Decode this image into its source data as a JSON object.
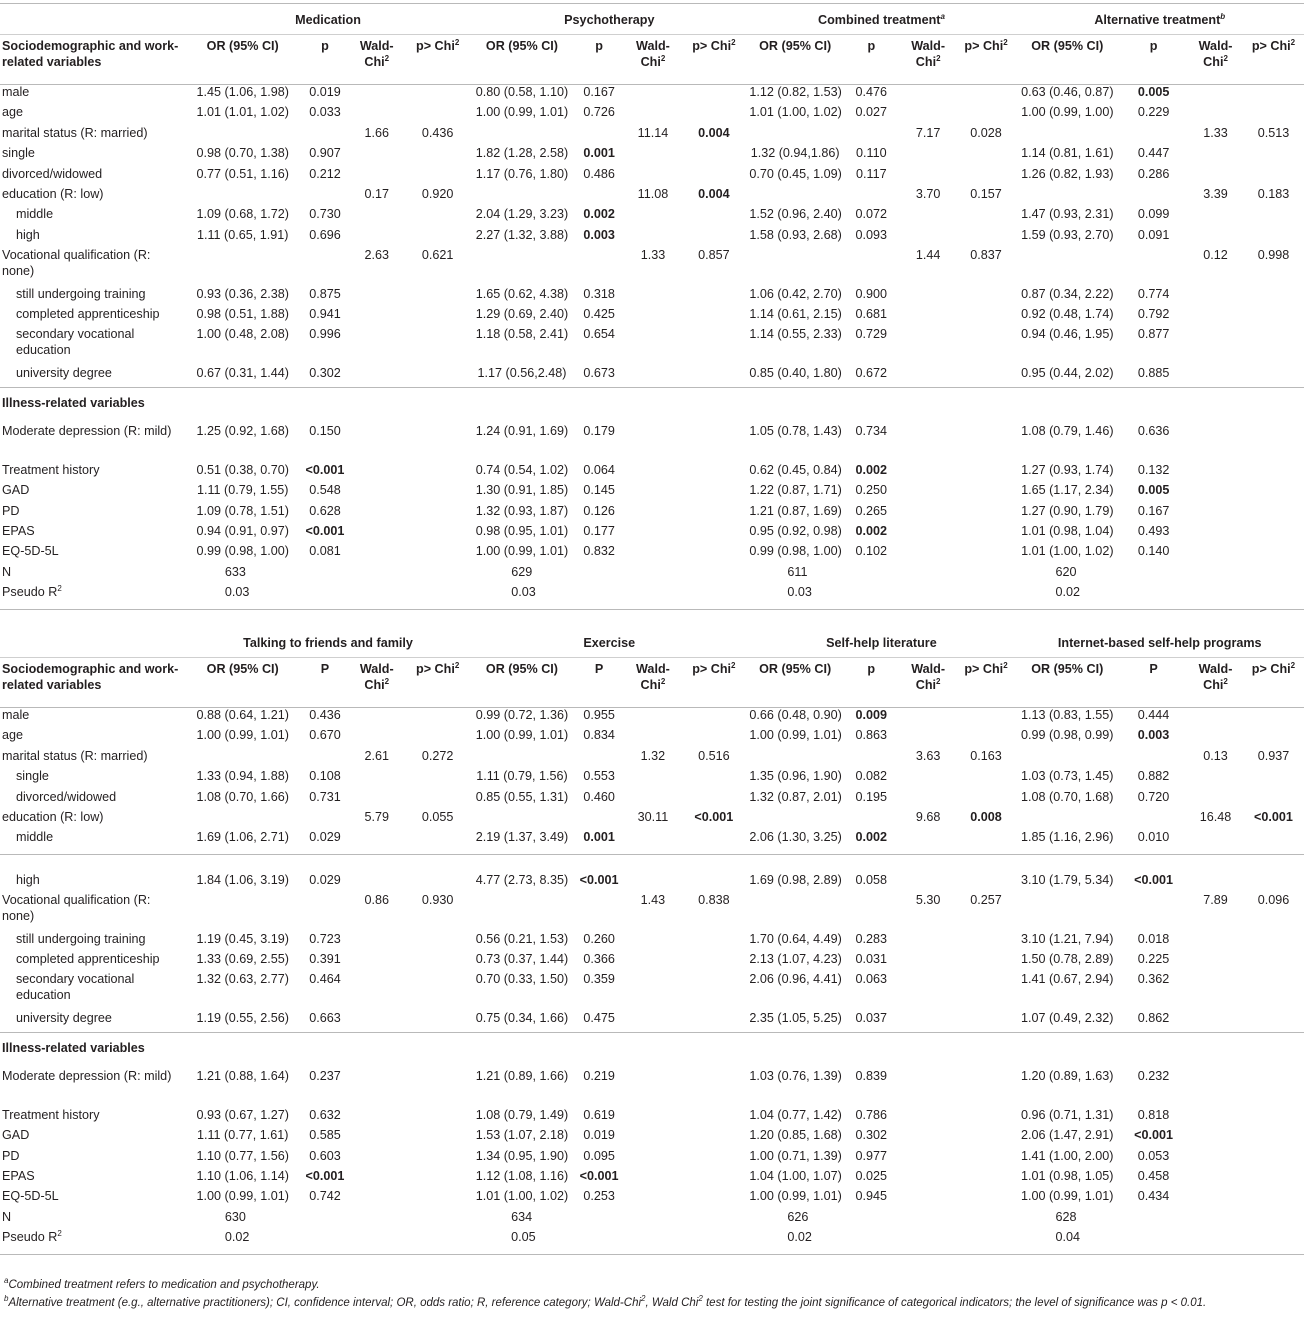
{
  "top": {
    "groups": [
      "Medication",
      "Psychotherapy",
      "Combined treatment",
      "Alternative treatment"
    ],
    "group_sup": [
      "",
      "",
      "a",
      "b"
    ],
    "header": {
      "label": "Sociodemographic and work-related variables",
      "or": "OR (95% CI)",
      "p": "p",
      "wald": "Wald-Chi",
      "pchi": "p> Chi",
      "sq": "2"
    },
    "rows": [
      {
        "label": "male",
        "cells": [
          "1.45 (1.06, 1.98)",
          "0.019",
          "",
          "",
          "0.80 (0.58, 1.10)",
          "0.167",
          "",
          "",
          "1.12 (0.82, 1.53)",
          "0.476",
          "",
          "",
          "0.63 (0.46, 0.87)",
          "0.005",
          "",
          ""
        ],
        "bold": [
          13
        ]
      },
      {
        "label": "age",
        "cells": [
          "1.01 (1.01, 1.02)",
          "0.033",
          "",
          "",
          "1.00 (0.99, 1.01)",
          "0.726",
          "",
          "",
          "1.01 (1.00, 1.02)",
          "0.027",
          "",
          "",
          "1.00 (0.99, 1.00)",
          "0.229",
          "",
          ""
        ],
        "bold": []
      },
      {
        "label": "marital status (R: married)",
        "cells": [
          "",
          "",
          "1.66",
          "0.436",
          "",
          "",
          "11.14",
          "0.004",
          "",
          "",
          "7.17",
          "0.028",
          "",
          "",
          "1.33",
          "0.513"
        ],
        "bold": [
          7
        ]
      },
      {
        "label": "single",
        "cells": [
          "0.98 (0.70, 1.38)",
          "0.907",
          "",
          "",
          "1.82 (1.28, 2.58)",
          "0.001",
          "",
          "",
          "1.32 (0.94,1.86)",
          "0.110",
          "",
          "",
          "1.14 (0.81, 1.61)",
          "0.447",
          "",
          ""
        ],
        "bold": [
          5
        ]
      },
      {
        "label": "divorced/widowed",
        "cells": [
          "0.77 (0.51, 1.16)",
          "0.212",
          "",
          "",
          "1.17 (0.76, 1.80)",
          "0.486",
          "",
          "",
          "0.70 (0.45, 1.09)",
          "0.117",
          "",
          "",
          "1.26 (0.82, 1.93)",
          "0.286",
          "",
          ""
        ],
        "bold": []
      },
      {
        "label": "education (R: low)",
        "cells": [
          "",
          "",
          "0.17",
          "0.920",
          "",
          "",
          "11.08",
          "0.004",
          "",
          "",
          "3.70",
          "0.157",
          "",
          "",
          "3.39",
          "0.183"
        ],
        "bold": [
          7
        ]
      },
      {
        "label": "middle",
        "ind": true,
        "cells": [
          "1.09 (0.68, 1.72)",
          "0.730",
          "",
          "",
          "2.04 (1.29, 3.23)",
          "0.002",
          "",
          "",
          "1.52 (0.96, 2.40)",
          "0.072",
          "",
          "",
          "1.47 (0.93, 2.31)",
          "0.099",
          "",
          ""
        ],
        "bold": [
          5
        ]
      },
      {
        "label": "high",
        "ind": true,
        "cells": [
          "1.11 (0.65, 1.91)",
          "0.696",
          "",
          "",
          "2.27 (1.32, 3.88)",
          "0.003",
          "",
          "",
          "1.58 (0.93, 2.68)",
          "0.093",
          "",
          "",
          "1.59 (0.93, 2.70)",
          "0.091",
          "",
          ""
        ],
        "bold": [
          5
        ]
      },
      {
        "label": "Vocational qualification (R: none)",
        "w2": true,
        "cells": [
          "",
          "",
          "2.63",
          "0.621",
          "",
          "",
          "1.33",
          "0.857",
          "",
          "",
          "1.44",
          "0.837",
          "",
          "",
          "0.12",
          "0.998"
        ],
        "bold": []
      },
      {
        "label": "still undergoing training",
        "ind": true,
        "cells": [
          "0.93 (0.36, 2.38)",
          "0.875",
          "",
          "",
          "1.65 (0.62, 4.38)",
          "0.318",
          "",
          "",
          "1.06 (0.42, 2.70)",
          "0.900",
          "",
          "",
          "0.87 (0.34, 2.22)",
          "0.774",
          "",
          ""
        ],
        "bold": []
      },
      {
        "label": "completed apprenticeship",
        "ind": true,
        "cells": [
          "0.98 (0.51, 1.88)",
          "0.941",
          "",
          "",
          "1.29 (0.69, 2.40)",
          "0.425",
          "",
          "",
          "1.14 (0.61, 2.15)",
          "0.681",
          "",
          "",
          "0.92 (0.48, 1.74)",
          "0.792",
          "",
          ""
        ],
        "bold": []
      },
      {
        "label": "secondary vocational education",
        "ind": true,
        "w2": true,
        "cells": [
          "1.00 (0.48, 2.08)",
          "0.996",
          "",
          "",
          "1.18 (0.58, 2.41)",
          "0.654",
          "",
          "",
          "1.14 (0.55, 2.33)",
          "0.729",
          "",
          "",
          "0.94 (0.46, 1.95)",
          "0.877",
          "",
          ""
        ],
        "bold": []
      },
      {
        "label": "university degree",
        "ind": true,
        "cells": [
          "0.67 (0.31, 1.44)",
          "0.302",
          "",
          "",
          "1.17 (0.56,2.48)",
          "0.673",
          "",
          "",
          "0.85 (0.40, 1.80)",
          "0.672",
          "",
          "",
          "0.95 (0.44, 2.02)",
          "0.885",
          "",
          ""
        ],
        "bold": []
      }
    ],
    "illness_title": "Illness-related variables",
    "illness_rows": [
      {
        "label": "Moderate depression (R: mild)",
        "w2": true,
        "cells": [
          "1.25 (0.92, 1.68)",
          "0.150",
          "",
          "",
          "1.24 (0.91, 1.69)",
          "0.179",
          "",
          "",
          "1.05 (0.78, 1.43)",
          "0.734",
          "",
          "",
          "1.08 (0.79, 1.46)",
          "0.636",
          "",
          ""
        ],
        "bold": []
      },
      {
        "label": "Treatment history",
        "cells": [
          "0.51 (0.38, 0.70)",
          "<0.001",
          "",
          "",
          "0.74 (0.54, 1.02)",
          "0.064",
          "",
          "",
          "0.62 (0.45, 0.84)",
          "0.002",
          "",
          "",
          "1.27 (0.93, 1.74)",
          "0.132",
          "",
          ""
        ],
        "bold": [
          1,
          9
        ]
      },
      {
        "label": "GAD",
        "cells": [
          "1.11 (0.79, 1.55)",
          "0.548",
          "",
          "",
          "1.30 (0.91, 1.85)",
          "0.145",
          "",
          "",
          "1.22 (0.87, 1.71)",
          "0.250",
          "",
          "",
          "1.65 (1.17, 2.34)",
          "0.005",
          "",
          ""
        ],
        "bold": [
          13
        ]
      },
      {
        "label": "PD",
        "cells": [
          "1.09 (0.78, 1.51)",
          "0.628",
          "",
          "",
          "1.32 (0.93, 1.87)",
          "0.126",
          "",
          "",
          "1.21 (0.87, 1.69)",
          "0.265",
          "",
          "",
          "1.27 (0.90, 1.79)",
          "0.167",
          "",
          ""
        ],
        "bold": []
      },
      {
        "label": "EPAS",
        "cells": [
          "0.94 (0.91, 0.97)",
          "<0.001",
          "",
          "",
          "0.98 (0.95, 1.01)",
          "0.177",
          "",
          "",
          "0.95 (0.92, 0.98)",
          "0.002",
          "",
          "",
          "1.01 (0.98, 1.04)",
          "0.493",
          "",
          ""
        ],
        "bold": [
          1,
          9
        ]
      },
      {
        "label": "EQ-5D-5L",
        "cells": [
          "0.99 (0.98, 1.00)",
          "0.081",
          "",
          "",
          "1.00 (0.99, 1.01)",
          "0.832",
          "",
          "",
          "0.99 (0.98, 1.00)",
          "0.102",
          "",
          "",
          "1.01 (1.00, 1.02)",
          "0.140",
          "",
          ""
        ],
        "bold": []
      },
      {
        "label": "N",
        "cells": [
          "633",
          "",
          "",
          "",
          "629",
          "",
          "",
          "",
          "611",
          "",
          "",
          "",
          "620",
          "",
          "",
          ""
        ],
        "bold": [],
        "center_or": true
      },
      {
        "label": "Pseudo R",
        "sup": "2",
        "cells": [
          "0.03",
          "",
          "",
          "",
          "0.03",
          "",
          "",
          "",
          "0.03",
          "",
          "",
          "",
          "0.02",
          "",
          "",
          ""
        ],
        "bold": [],
        "center_or": true
      }
    ]
  },
  "bottom": {
    "groups": [
      "Talking to friends and family",
      "Exercise",
      "Self-help literature",
      "Internet-based self-help programs"
    ],
    "header": {
      "label": "Sociodemographic and work-related variables",
      "or": "OR (95% CI)",
      "p_upper": "P",
      "p_lower": "p",
      "wald": "Wald-Chi",
      "pchi": "p> Chi",
      "sq": "2"
    },
    "rows": [
      {
        "label": "male",
        "cells": [
          "0.88 (0.64, 1.21)",
          "0.436",
          "",
          "",
          "0.99 (0.72, 1.36)",
          "0.955",
          "",
          "",
          "0.66 (0.48, 0.90)",
          "0.009",
          "",
          "",
          "1.13 (0.83, 1.55)",
          "0.444",
          "",
          ""
        ],
        "bold": [
          9
        ]
      },
      {
        "label": "age",
        "cells": [
          "1.00 (0.99, 1.01)",
          "0.670",
          "",
          "",
          "1.00 (0.99, 1.01)",
          "0.834",
          "",
          "",
          "1.00 (0.99, 1.01)",
          "0.863",
          "",
          "",
          "0.99 (0.98, 0.99)",
          "0.003",
          "",
          ""
        ],
        "bold": [
          13
        ]
      },
      {
        "label": "marital status (R: married)",
        "cells": [
          "",
          "",
          "2.61",
          "0.272",
          "",
          "",
          "1.32",
          "0.516",
          "",
          "",
          "3.63",
          "0.163",
          "",
          "",
          "0.13",
          "0.937"
        ],
        "bold": []
      },
      {
        "label": "single",
        "ind": true,
        "cells": [
          "1.33 (0.94, 1.88)",
          "0.108",
          "",
          "",
          "1.11 (0.79, 1.56)",
          "0.553",
          "",
          "",
          "1.35 (0.96, 1.90)",
          "0.082",
          "",
          "",
          "1.03 (0.73, 1.45)",
          "0.882",
          "",
          ""
        ],
        "bold": []
      },
      {
        "label": "divorced/widowed",
        "ind": true,
        "cells": [
          "1.08 (0.70, 1.66)",
          "0.731",
          "",
          "",
          "0.85 (0.55, 1.31)",
          "0.460",
          "",
          "",
          "1.32 (0.87, 2.01)",
          "0.195",
          "",
          "",
          "1.08 (0.70, 1.68)",
          "0.720",
          "",
          ""
        ],
        "bold": []
      },
      {
        "label": "education (R: low)",
        "cells": [
          "",
          "",
          "5.79",
          "0.055",
          "",
          "",
          "30.11",
          "<0.001",
          "",
          "",
          "9.68",
          "0.008",
          "",
          "",
          "16.48",
          "<0.001"
        ],
        "bold": [
          7,
          11,
          15
        ]
      },
      {
        "label": "middle",
        "ind": true,
        "cells": [
          "1.69 (1.06, 2.71)",
          "0.029",
          "",
          "",
          "2.19 (1.37, 3.49)",
          "0.001",
          "",
          "",
          "2.06 (1.30, 3.25)",
          "0.002",
          "",
          "",
          "1.85 (1.16, 2.96)",
          "0.010",
          "",
          ""
        ],
        "bold": [
          5,
          9
        ]
      }
    ],
    "rows2": [
      {
        "label": "high",
        "ind": true,
        "cells": [
          "1.84 (1.06, 3.19)",
          "0.029",
          "",
          "",
          "4.77 (2.73, 8.35)",
          "<0.001",
          "",
          "",
          "1.69 (0.98, 2.89)",
          "0.058",
          "",
          "",
          "3.10 (1.79, 5.34)",
          "<0.001",
          "",
          ""
        ],
        "bold": [
          5,
          13
        ]
      },
      {
        "label": "Vocational qualification (R: none)",
        "w2": true,
        "cells": [
          "",
          "",
          "0.86",
          "0.930",
          "",
          "",
          "1.43",
          "0.838",
          "",
          "",
          "5.30",
          "0.257",
          "",
          "",
          "7.89",
          "0.096"
        ],
        "bold": []
      },
      {
        "label": "still undergoing training",
        "ind": true,
        "cells": [
          "1.19 (0.45, 3.19)",
          "0.723",
          "",
          "",
          "0.56 (0.21, 1.53)",
          "0.260",
          "",
          "",
          "1.70 (0.64, 4.49)",
          "0.283",
          "",
          "",
          "3.10 (1.21, 7.94)",
          "0.018",
          "",
          ""
        ],
        "bold": []
      },
      {
        "label": "completed apprenticeship",
        "ind": true,
        "cells": [
          "1.33 (0.69, 2.55)",
          "0.391",
          "",
          "",
          "0.73 (0.37, 1.44)",
          "0.366",
          "",
          "",
          "2.13 (1.07, 4.23)",
          "0.031",
          "",
          "",
          "1.50 (0.78, 2.89)",
          "0.225",
          "",
          ""
        ],
        "bold": []
      },
      {
        "label": "secondary vocational education",
        "ind": true,
        "w2": true,
        "cells": [
          "1.32 (0.63, 2.77)",
          "0.464",
          "",
          "",
          "0.70 (0.33, 1.50)",
          "0.359",
          "",
          "",
          "2.06 (0.96, 4.41)",
          "0.063",
          "",
          "",
          "1.41 (0.67, 2.94)",
          "0.362",
          "",
          ""
        ],
        "bold": []
      },
      {
        "label": "university degree",
        "ind": true,
        "cells": [
          "1.19 (0.55, 2.56)",
          "0.663",
          "",
          "",
          "0.75 (0.34, 1.66)",
          "0.475",
          "",
          "",
          "2.35 (1.05, 5.25)",
          "0.037",
          "",
          "",
          "1.07 (0.49, 2.32)",
          "0.862",
          "",
          ""
        ],
        "bold": []
      }
    ],
    "illness_title": "Illness-related variables",
    "illness_rows": [
      {
        "label": "Moderate depression (R: mild)",
        "w2": true,
        "cells": [
          "1.21 (0.88, 1.64)",
          "0.237",
          "",
          "",
          "1.21 (0.89, 1.66)",
          "0.219",
          "",
          "",
          "1.03 (0.76, 1.39)",
          "0.839",
          "",
          "",
          "1.20 (0.89, 1.63)",
          "0.232",
          "",
          ""
        ],
        "bold": []
      },
      {
        "label": "Treatment history",
        "cells": [
          "0.93 (0.67, 1.27)",
          "0.632",
          "",
          "",
          "1.08 (0.79, 1.49)",
          "0.619",
          "",
          "",
          "1.04 (0.77, 1.42)",
          "0.786",
          "",
          "",
          "0.96 (0.71, 1.31)",
          "0.818",
          "",
          ""
        ],
        "bold": []
      },
      {
        "label": "GAD",
        "cells": [
          "1.11 (0.77, 1.61)",
          "0.585",
          "",
          "",
          "1.53 (1.07, 2.18)",
          "0.019",
          "",
          "",
          "1.20 (0.85, 1.68)",
          "0.302",
          "",
          "",
          "2.06 (1.47, 2.91)",
          "<0.001",
          "",
          ""
        ],
        "bold": [
          13
        ]
      },
      {
        "label": "PD",
        "cells": [
          "1.10 (0.77, 1.56)",
          "0.603",
          "",
          "",
          "1.34 (0.95, 1.90)",
          "0.095",
          "",
          "",
          "1.00 (0.71, 1.39)",
          "0.977",
          "",
          "",
          "1.41 (1.00, 2.00)",
          "0.053",
          "",
          ""
        ],
        "bold": []
      },
      {
        "label": "EPAS",
        "cells": [
          "1.10 (1.06, 1.14)",
          "<0.001",
          "",
          "",
          "1.12 (1.08, 1.16)",
          "<0.001",
          "",
          "",
          "1.04 (1.00, 1.07)",
          "0.025",
          "",
          "",
          "1.01 (0.98, 1.05)",
          "0.458",
          "",
          ""
        ],
        "bold": [
          1,
          5
        ]
      },
      {
        "label": "EQ-5D-5L",
        "cells": [
          "1.00 (0.99, 1.01)",
          "0.742",
          "",
          "",
          "1.01 (1.00, 1.02)",
          "0.253",
          "",
          "",
          "1.00 (0.99, 1.01)",
          "0.945",
          "",
          "",
          "1.00 (0.99, 1.01)",
          "0.434",
          "",
          ""
        ],
        "bold": []
      },
      {
        "label": "N",
        "cells": [
          "630",
          "",
          "",
          "",
          "634",
          "",
          "",
          "",
          "626",
          "",
          "",
          "",
          "628",
          "",
          "",
          ""
        ],
        "bold": [],
        "center_or": true
      },
      {
        "label": "Pseudo R",
        "sup": "2",
        "cells": [
          "0.02",
          "",
          "",
          "",
          "0.05",
          "",
          "",
          "",
          "0.02",
          "",
          "",
          "",
          "0.04",
          "",
          "",
          ""
        ],
        "bold": [],
        "center_or": true
      }
    ]
  },
  "footnotes": {
    "a_mark": "a",
    "a_text": "Combined treatment refers to medication and psychotherapy.",
    "b_mark": "b",
    "b_text_1": "Alternative treatment (e.g., alternative practitioners); CI, confidence interval; OR, odds ratio; R, reference category; Wald-Chi",
    "b_sq": "2",
    "b_text_2": ", Wald Chi",
    "b_text_3": " test for testing the joint significance of categorical indicators; the level of significance was p < 0.01."
  }
}
